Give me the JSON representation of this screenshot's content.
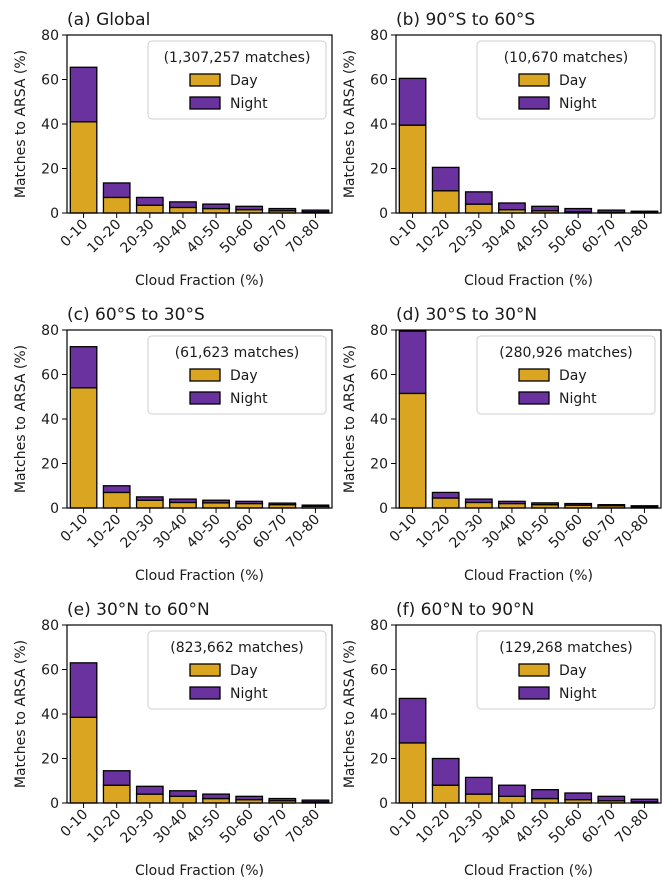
{
  "colors": {
    "day": "#DAA520",
    "night": "#6A329F"
  },
  "chart_data": [
    {
      "type": "bar",
      "stacked": true,
      "title": "(a) Global",
      "legend_title": "(1,307,257 matches)",
      "legend_placement": "top-right",
      "categories": [
        "0-10",
        "10-20",
        "20-30",
        "30-40",
        "40-50",
        "50-60",
        "60-70",
        "70-80"
      ],
      "series": [
        {
          "name": "Day",
          "values": [
            41,
            7,
            3.5,
            2.5,
            2,
            1.5,
            1,
            0.5
          ]
        },
        {
          "name": "Night",
          "values": [
            24.5,
            6.5,
            3.5,
            2.5,
            2,
            1.5,
            1,
            0.8
          ]
        }
      ],
      "xlabel": "Cloud Fraction (%)",
      "ylabel": "Matches to ARSA (%)",
      "ylim": [
        0,
        80
      ],
      "yticks": [
        "0",
        "20",
        "40",
        "60",
        "80"
      ],
      "grid": false
    },
    {
      "type": "bar",
      "stacked": true,
      "title": "(b) 90°S to 60°S",
      "legend_title": "(10,670 matches)",
      "legend_placement": "top-right",
      "categories": [
        "0-10",
        "10-20",
        "20-30",
        "30-40",
        "40-50",
        "50-60",
        "60-70",
        "70-80"
      ],
      "series": [
        {
          "name": "Day",
          "values": [
            39.5,
            10,
            4,
            1.5,
            1,
            0.5,
            0.3,
            0.2
          ]
        },
        {
          "name": "Night",
          "values": [
            21,
            10.5,
            5.5,
            3,
            2,
            1.5,
            1,
            0.6
          ]
        }
      ],
      "xlabel": "Cloud Fraction (%)",
      "ylabel": "Matches to ARSA (%)",
      "ylim": [
        0,
        80
      ],
      "yticks": [
        "0",
        "20",
        "40",
        "60",
        "80"
      ],
      "grid": false
    },
    {
      "type": "bar",
      "stacked": true,
      "title": "(c) 60°S to 30°S",
      "legend_title": "(61,623 matches)",
      "legend_placement": "top-right",
      "categories": [
        "0-10",
        "10-20",
        "20-30",
        "30-40",
        "40-50",
        "50-60",
        "60-70",
        "70-80"
      ],
      "series": [
        {
          "name": "Day",
          "values": [
            54,
            7,
            3.5,
            2.5,
            2.3,
            2,
            1.5,
            0.8
          ]
        },
        {
          "name": "Night",
          "values": [
            18.5,
            3,
            1.5,
            1.5,
            1.2,
            1,
            0.7,
            0.5
          ]
        }
      ],
      "xlabel": "Cloud Fraction (%)",
      "ylabel": "Matches to ARSA (%)",
      "ylim": [
        0,
        80
      ],
      "yticks": [
        "0",
        "20",
        "40",
        "60",
        "80"
      ],
      "grid": false
    },
    {
      "type": "bar",
      "stacked": true,
      "title": "(d) 30°S to 30°N",
      "legend_title": "(280,926 matches)",
      "legend_placement": "top-right",
      "categories": [
        "0-10",
        "10-20",
        "20-30",
        "30-40",
        "40-50",
        "50-60",
        "60-70",
        "70-80"
      ],
      "series": [
        {
          "name": "Day",
          "values": [
            51.5,
            4.5,
            2.5,
            2,
            1.5,
            1.3,
            1,
            0.6
          ]
        },
        {
          "name": "Night",
          "values": [
            28,
            2.5,
            1.5,
            1,
            0.8,
            0.7,
            0.5,
            0.4
          ]
        }
      ],
      "xlabel": "Cloud Fraction (%)",
      "ylabel": "Matches to ARSA (%)",
      "ylim": [
        0,
        80
      ],
      "yticks": [
        "0",
        "20",
        "40",
        "60",
        "80"
      ],
      "grid": false
    },
    {
      "type": "bar",
      "stacked": true,
      "title": "(e) 30°N to 60°N",
      "legend_title": "(823,662 matches)",
      "legend_placement": "top-right",
      "categories": [
        "0-10",
        "10-20",
        "20-30",
        "30-40",
        "40-50",
        "50-60",
        "60-70",
        "70-80"
      ],
      "series": [
        {
          "name": "Day",
          "values": [
            38.5,
            8,
            4,
            3,
            2,
            1.5,
            1,
            0.5
          ]
        },
        {
          "name": "Night",
          "values": [
            24.5,
            6.5,
            3.5,
            2.5,
            2,
            1.5,
            1,
            0.8
          ]
        }
      ],
      "xlabel": "Cloud Fraction (%)",
      "ylabel": "Matches to ARSA (%)",
      "ylim": [
        0,
        80
      ],
      "yticks": [
        "0",
        "20",
        "40",
        "60",
        "80"
      ],
      "grid": false
    },
    {
      "type": "bar",
      "stacked": true,
      "title": "(f) 60°N to 90°N",
      "legend_title": "(129,268 matches)",
      "legend_placement": "top-right",
      "categories": [
        "0-10",
        "10-20",
        "20-30",
        "30-40",
        "40-50",
        "50-60",
        "60-70",
        "70-80"
      ],
      "series": [
        {
          "name": "Day",
          "values": [
            27,
            8,
            4,
            3,
            2,
            1.5,
            1,
            0.5
          ]
        },
        {
          "name": "Night",
          "values": [
            20,
            12,
            7.5,
            5,
            4,
            3,
            2,
            1.2
          ]
        }
      ],
      "xlabel": "Cloud Fraction (%)",
      "ylabel": "Matches to ARSA (%)",
      "ylim": [
        0,
        80
      ],
      "yticks": [
        "0",
        "20",
        "40",
        "60",
        "80"
      ],
      "grid": false
    }
  ]
}
